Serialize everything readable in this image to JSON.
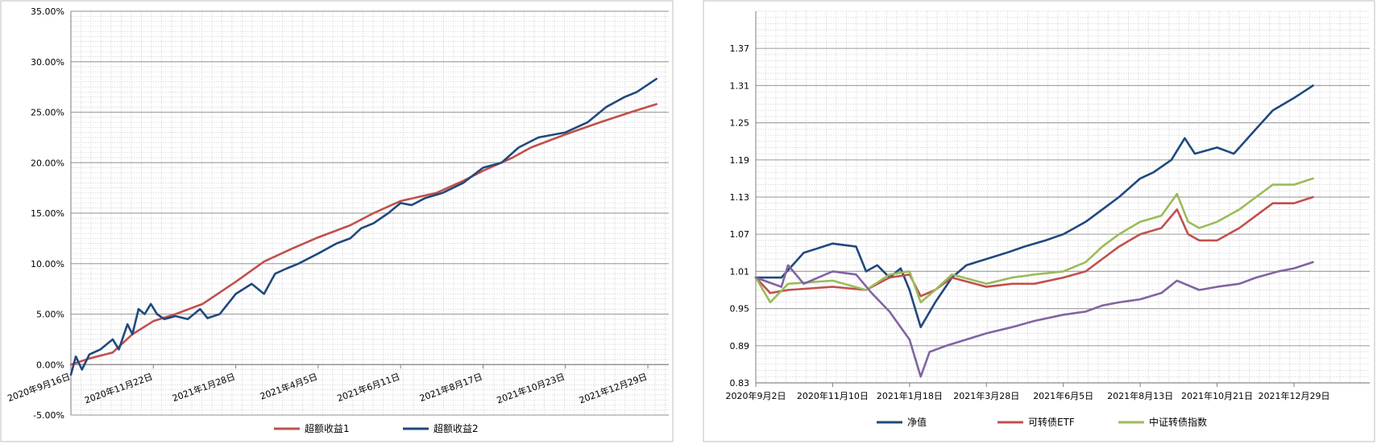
{
  "chart_data": [
    {
      "type": "line",
      "title": "",
      "xlabel": "",
      "ylabel": "",
      "y_format": "percent",
      "ylim": [
        -5,
        35
      ],
      "yticks": [
        "35.00%",
        "30.00%",
        "25.00%",
        "20.00%",
        "15.00%",
        "10.00%",
        "5.00%",
        "0.00%",
        "-5.00%"
      ],
      "ytick_values": [
        35,
        30,
        25,
        20,
        15,
        10,
        5,
        0,
        -5
      ],
      "xlim": [
        "2020-09-16",
        "2022-01-15"
      ],
      "xticks": [
        {
          "label": "2020年9月16日",
          "date": "2020-09-16"
        },
        {
          "label": "2020年11月22日",
          "date": "2020-11-22"
        },
        {
          "label": "2021年1月28日",
          "date": "2021-01-28"
        },
        {
          "label": "2021年4月5日",
          "date": "2021-04-05"
        },
        {
          "label": "2021年6月11日",
          "date": "2021-06-11"
        },
        {
          "label": "2021年8月17日",
          "date": "2021-08-17"
        },
        {
          "label": "2021年10月23日",
          "date": "2021-10-23"
        },
        {
          "label": "2021年12月29日",
          "date": "2021-12-29"
        }
      ],
      "grid": true,
      "legend_position": "bottom",
      "series": [
        {
          "name": "超额收益1",
          "color": "#c0504d",
          "points": [
            [
              "2020-09-16",
              0.0
            ],
            [
              "2020-10-01",
              0.6
            ],
            [
              "2020-10-20",
              1.2
            ],
            [
              "2020-11-05",
              3.0
            ],
            [
              "2020-11-22",
              4.3
            ],
            [
              "2020-12-10",
              5.0
            ],
            [
              "2021-01-01",
              6.0
            ],
            [
              "2021-01-28",
              8.2
            ],
            [
              "2021-02-20",
              10.2
            ],
            [
              "2021-03-15",
              11.5
            ],
            [
              "2021-04-05",
              12.6
            ],
            [
              "2021-05-01",
              13.8
            ],
            [
              "2021-05-20",
              15.0
            ],
            [
              "2021-06-11",
              16.2
            ],
            [
              "2021-07-10",
              17.0
            ],
            [
              "2021-08-01",
              18.2
            ],
            [
              "2021-08-17",
              19.2
            ],
            [
              "2021-09-10",
              20.5
            ],
            [
              "2021-09-25",
              21.5
            ],
            [
              "2021-10-23",
              22.8
            ],
            [
              "2021-11-20",
              24.0
            ],
            [
              "2021-12-15",
              25.0
            ],
            [
              "2022-01-05",
              25.8
            ]
          ]
        },
        {
          "name": "超额收益2",
          "color": "#1f497d",
          "points": [
            [
              "2020-09-16",
              -1.0
            ],
            [
              "2020-09-20",
              0.8
            ],
            [
              "2020-09-25",
              -0.5
            ],
            [
              "2020-10-01",
              1.0
            ],
            [
              "2020-10-10",
              1.5
            ],
            [
              "2020-10-20",
              2.5
            ],
            [
              "2020-10-25",
              1.5
            ],
            [
              "2020-11-01",
              4.0
            ],
            [
              "2020-11-05",
              3.0
            ],
            [
              "2020-11-10",
              5.5
            ],
            [
              "2020-11-15",
              5.0
            ],
            [
              "2020-11-20",
              6.0
            ],
            [
              "2020-11-25",
              5.0
            ],
            [
              "2020-12-01",
              4.5
            ],
            [
              "2020-12-10",
              4.8
            ],
            [
              "2020-12-20",
              4.5
            ],
            [
              "2020-12-30",
              5.5
            ],
            [
              "2021-01-05",
              4.6
            ],
            [
              "2021-01-15",
              5.0
            ],
            [
              "2021-01-28",
              7.0
            ],
            [
              "2021-02-10",
              8.0
            ],
            [
              "2021-02-20",
              7.0
            ],
            [
              "2021-03-01",
              9.0
            ],
            [
              "2021-03-10",
              9.5
            ],
            [
              "2021-03-20",
              10.0
            ],
            [
              "2021-04-05",
              11.0
            ],
            [
              "2021-04-20",
              12.0
            ],
            [
              "2021-05-01",
              12.5
            ],
            [
              "2021-05-10",
              13.5
            ],
            [
              "2021-05-20",
              14.0
            ],
            [
              "2021-06-01",
              15.0
            ],
            [
              "2021-06-11",
              16.0
            ],
            [
              "2021-06-20",
              15.8
            ],
            [
              "2021-07-01",
              16.5
            ],
            [
              "2021-07-15",
              17.0
            ],
            [
              "2021-08-01",
              18.0
            ],
            [
              "2021-08-17",
              19.5
            ],
            [
              "2021-09-01",
              20.0
            ],
            [
              "2021-09-15",
              21.5
            ],
            [
              "2021-10-01",
              22.5
            ],
            [
              "2021-10-23",
              23.0
            ],
            [
              "2021-11-10",
              24.0
            ],
            [
              "2021-11-25",
              25.5
            ],
            [
              "2021-12-10",
              26.5
            ],
            [
              "2021-12-20",
              27.0
            ],
            [
              "2022-01-05",
              28.3
            ]
          ]
        }
      ]
    },
    {
      "type": "line",
      "title": "",
      "xlabel": "",
      "ylabel": "",
      "y_format": "fixed2",
      "ylim": [
        0.83,
        1.43
      ],
      "yticks": [
        "1.37",
        "1.31",
        "1.25",
        "1.19",
        "1.13",
        "1.07",
        "1.01",
        "0.95",
        "0.89",
        "0.83"
      ],
      "ytick_values": [
        1.37,
        1.31,
        1.25,
        1.19,
        1.13,
        1.07,
        1.01,
        0.95,
        0.89,
        0.83
      ],
      "xlim": [
        "2020-09-02",
        "2022-03-07"
      ],
      "xticks": [
        {
          "label": "2020年9月2日",
          "date": "2020-09-02"
        },
        {
          "label": "2020年11月10日",
          "date": "2020-11-10"
        },
        {
          "label": "2021年1月18日",
          "date": "2021-01-18"
        },
        {
          "label": "2021年3月28日",
          "date": "2021-03-28"
        },
        {
          "label": "2021年6月5日",
          "date": "2021-06-05"
        },
        {
          "label": "2021年8月13日",
          "date": "2021-08-13"
        },
        {
          "label": "2021年10月21日",
          "date": "2021-10-21"
        },
        {
          "label": "2021年12月29日",
          "date": "2021-12-29"
        }
      ],
      "grid": true,
      "legend_position": "bottom",
      "series": [
        {
          "name": "净值",
          "color": "#1f497d",
          "points": [
            [
              "2020-09-02",
              1.0
            ],
            [
              "2020-09-25",
              1.0
            ],
            [
              "2020-10-15",
              1.04
            ],
            [
              "2020-11-10",
              1.055
            ],
            [
              "2020-12-01",
              1.05
            ],
            [
              "2020-12-10",
              1.01
            ],
            [
              "2020-12-20",
              1.02
            ],
            [
              "2020-12-31",
              1.0
            ],
            [
              "2021-01-10",
              1.015
            ],
            [
              "2021-01-18",
              0.98
            ],
            [
              "2021-01-28",
              0.92
            ],
            [
              "2021-02-10",
              0.96
            ],
            [
              "2021-02-25",
              1.0
            ],
            [
              "2021-03-10",
              1.02
            ],
            [
              "2021-03-28",
              1.03
            ],
            [
              "2021-04-15",
              1.04
            ],
            [
              "2021-05-01",
              1.05
            ],
            [
              "2021-05-20",
              1.06
            ],
            [
              "2021-06-05",
              1.07
            ],
            [
              "2021-06-25",
              1.09
            ],
            [
              "2021-07-10",
              1.11
            ],
            [
              "2021-07-25",
              1.13
            ],
            [
              "2021-08-13",
              1.16
            ],
            [
              "2021-08-25",
              1.17
            ],
            [
              "2021-09-10",
              1.19
            ],
            [
              "2021-09-22",
              1.225
            ],
            [
              "2021-10-01",
              1.2
            ],
            [
              "2021-10-21",
              1.21
            ],
            [
              "2021-11-05",
              1.2
            ],
            [
              "2021-11-25",
              1.24
            ],
            [
              "2021-12-10",
              1.27
            ],
            [
              "2021-12-29",
              1.29
            ],
            [
              "2022-01-15",
              1.31
            ]
          ]
        },
        {
          "name": "可转债ETF",
          "color": "#c0504d",
          "points": [
            [
              "2020-09-02",
              1.0
            ],
            [
              "2020-09-15",
              0.975
            ],
            [
              "2020-10-01",
              0.98
            ],
            [
              "2020-11-10",
              0.985
            ],
            [
              "2020-12-10",
              0.98
            ],
            [
              "2020-12-31",
              1.0
            ],
            [
              "2021-01-18",
              1.005
            ],
            [
              "2021-01-28",
              0.97
            ],
            [
              "2021-02-10",
              0.98
            ],
            [
              "2021-02-25",
              1.0
            ],
            [
              "2021-03-28",
              0.985
            ],
            [
              "2021-04-20",
              0.99
            ],
            [
              "2021-05-10",
              0.99
            ],
            [
              "2021-06-05",
              1.0
            ],
            [
              "2021-06-25",
              1.01
            ],
            [
              "2021-07-10",
              1.03
            ],
            [
              "2021-07-25",
              1.05
            ],
            [
              "2021-08-13",
              1.07
            ],
            [
              "2021-09-01",
              1.08
            ],
            [
              "2021-09-15",
              1.11
            ],
            [
              "2021-09-25",
              1.07
            ],
            [
              "2021-10-05",
              1.06
            ],
            [
              "2021-10-21",
              1.06
            ],
            [
              "2021-11-10",
              1.08
            ],
            [
              "2021-11-25",
              1.1
            ],
            [
              "2021-12-10",
              1.12
            ],
            [
              "2021-12-29",
              1.12
            ],
            [
              "2022-01-15",
              1.13
            ]
          ]
        },
        {
          "name": "中证转债指数",
          "color": "#9bbb59",
          "points": [
            [
              "2020-09-02",
              1.0
            ],
            [
              "2020-09-15",
              0.96
            ],
            [
              "2020-10-01",
              0.99
            ],
            [
              "2020-11-10",
              0.995
            ],
            [
              "2020-12-10",
              0.98
            ],
            [
              "2020-12-31",
              1.005
            ],
            [
              "2021-01-18",
              1.01
            ],
            [
              "2021-01-28",
              0.96
            ],
            [
              "2021-02-10",
              0.98
            ],
            [
              "2021-02-25",
              1.005
            ],
            [
              "2021-03-28",
              0.99
            ],
            [
              "2021-04-20",
              1.0
            ],
            [
              "2021-05-10",
              1.005
            ],
            [
              "2021-06-05",
              1.01
            ],
            [
              "2021-06-25",
              1.025
            ],
            [
              "2021-07-10",
              1.05
            ],
            [
              "2021-07-25",
              1.07
            ],
            [
              "2021-08-13",
              1.09
            ],
            [
              "2021-09-01",
              1.1
            ],
            [
              "2021-09-15",
              1.135
            ],
            [
              "2021-09-25",
              1.09
            ],
            [
              "2021-10-05",
              1.08
            ],
            [
              "2021-10-21",
              1.09
            ],
            [
              "2021-11-10",
              1.11
            ],
            [
              "2021-11-25",
              1.13
            ],
            [
              "2021-12-10",
              1.15
            ],
            [
              "2021-12-29",
              1.15
            ],
            [
              "2022-01-15",
              1.16
            ]
          ]
        },
        {
          "name": "",
          "color": "#8064a2",
          "points": [
            [
              "2020-09-02",
              1.0
            ],
            [
              "2020-09-25",
              0.985
            ],
            [
              "2020-10-01",
              1.02
            ],
            [
              "2020-10-15",
              0.99
            ],
            [
              "2020-11-10",
              1.01
            ],
            [
              "2020-12-01",
              1.005
            ],
            [
              "2020-12-15",
              0.975
            ],
            [
              "2020-12-31",
              0.945
            ],
            [
              "2021-01-10",
              0.92
            ],
            [
              "2021-01-18",
              0.9
            ],
            [
              "2021-01-28",
              0.84
            ],
            [
              "2021-02-05",
              0.88
            ],
            [
              "2021-02-20",
              0.89
            ],
            [
              "2021-03-10",
              0.9
            ],
            [
              "2021-03-28",
              0.91
            ],
            [
              "2021-04-20",
              0.92
            ],
            [
              "2021-05-10",
              0.93
            ],
            [
              "2021-06-05",
              0.94
            ],
            [
              "2021-06-25",
              0.945
            ],
            [
              "2021-07-10",
              0.955
            ],
            [
              "2021-07-25",
              0.96
            ],
            [
              "2021-08-13",
              0.965
            ],
            [
              "2021-09-01",
              0.975
            ],
            [
              "2021-09-15",
              0.995
            ],
            [
              "2021-10-05",
              0.98
            ],
            [
              "2021-10-21",
              0.985
            ],
            [
              "2021-11-10",
              0.99
            ],
            [
              "2021-11-25",
              1.0
            ],
            [
              "2021-12-15",
              1.01
            ],
            [
              "2021-12-29",
              1.015
            ],
            [
              "2022-01-15",
              1.025
            ]
          ]
        }
      ]
    }
  ]
}
